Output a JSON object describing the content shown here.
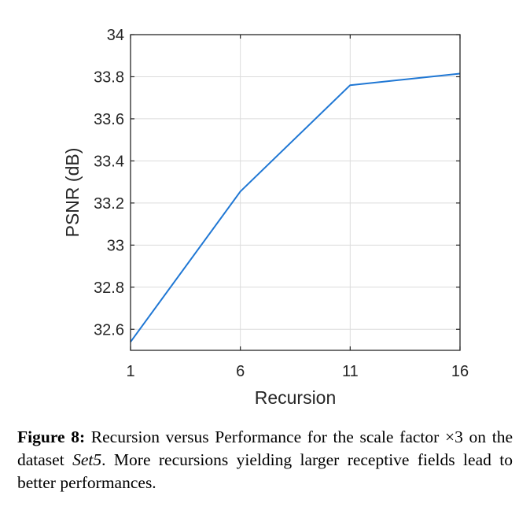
{
  "chart_data": {
    "type": "line",
    "title": "",
    "xlabel": "Recursion",
    "ylabel": "PSNR (dB)",
    "xlim": [
      1,
      16
    ],
    "ylim": [
      32.5,
      34
    ],
    "xticks": [
      1,
      6,
      11,
      16
    ],
    "xtick_labels": [
      "1",
      "6",
      "11",
      "16"
    ],
    "yticks": [
      32.6,
      32.8,
      33,
      33.2,
      33.4,
      33.6,
      33.8,
      34
    ],
    "ytick_labels": [
      "32.6",
      "32.8",
      "33",
      "33.2",
      "33.4",
      "33.6",
      "33.8",
      "34"
    ],
    "grid": true,
    "series": [
      {
        "name": "PSNR",
        "color": "#1f77d4",
        "x": [
          1,
          6,
          11,
          16
        ],
        "y": [
          32.54,
          33.255,
          33.76,
          33.815
        ]
      }
    ]
  },
  "caption": {
    "label": "Figure 8:",
    "text_before": " Recursion versus Performance for the scale factor ×3 on the dataset ",
    "dataset": "Set5",
    "text_after": ".  More recursions yielding larger receptive fields lead to better performances."
  }
}
